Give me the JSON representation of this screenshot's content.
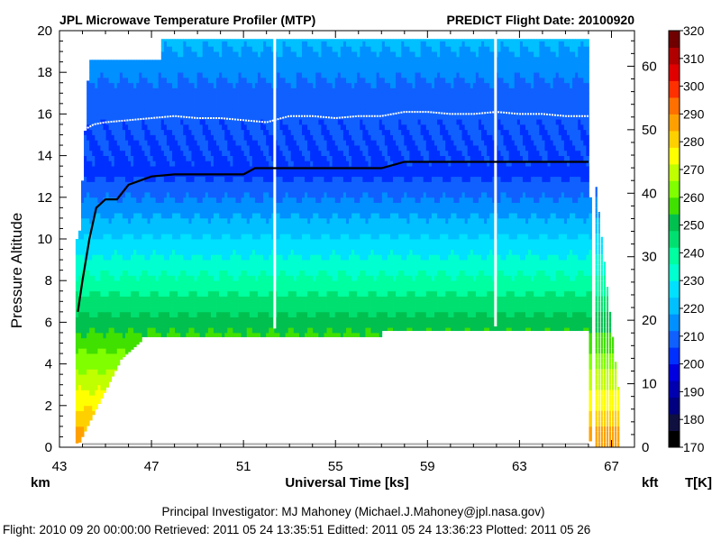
{
  "title_left": "JPL Microwave Temperature Profiler (MTP)",
  "title_right": "PREDICT  Flight Date: 20100920",
  "footer": {
    "line1": "Principal Investigator: MJ Mahoney (Michael.J.Mahoney@jpl.nasa.gov)",
    "line2": "Flight: 2010 09 20 00:00:00   Retrieved: 2011 05 24 13:35:51   Editted: 2011 05 24 13:36:23   Plotted: 2011 05 26"
  },
  "colors": {
    "palette": [
      "#000000",
      "#101040",
      "#000080",
      "#0000b0",
      "#0000e0",
      "#0030ff",
      "#1060ff",
      "#0090ff",
      "#00c0ff",
      "#00e0ff",
      "#00ffd0",
      "#00ffa0",
      "#00e070",
      "#00c050",
      "#40e000",
      "#80ff00",
      "#c0ff00",
      "#ffff00",
      "#ffd000",
      "#ffa000",
      "#ff7000",
      "#ff3000",
      "#e00000",
      "#b00000",
      "#700000"
    ],
    "tropopause": "#000000",
    "aircraft": "#ffffff",
    "surface": "#aaaaaa"
  },
  "chart_data": {
    "type": "heatmap",
    "title": "JPL Microwave Temperature Profiler (MTP)",
    "xlabel": "Universal Time [ks]",
    "ylabel": "Pressure Altitude",
    "y_unit_left": "km",
    "y_unit_right": "kft",
    "colorbar_label": "T[K]",
    "xlim": [
      43,
      68
    ],
    "ylim": [
      0,
      20
    ],
    "ylim_right": [
      0,
      65.6
    ],
    "clim": [
      170,
      320
    ],
    "x_ticks": [
      43,
      47,
      51,
      55,
      59,
      63,
      67
    ],
    "y_ticks": [
      0,
      2,
      4,
      6,
      8,
      10,
      12,
      14,
      16,
      18,
      20
    ],
    "y_ticks_right": [
      0,
      10,
      20,
      30,
      40,
      50,
      60
    ],
    "colorbar_ticks": [
      170,
      180,
      190,
      200,
      210,
      220,
      230,
      240,
      250,
      260,
      270,
      280,
      290,
      300,
      310,
      320
    ],
    "series": [
      {
        "x": [
          43.8,
          44.0,
          44.3,
          44.6,
          45.0,
          45.5,
          46.0,
          46.5,
          47.0,
          48.0,
          49.0,
          50.0,
          51.0,
          51.5,
          52.0,
          53.0,
          54.0,
          55.0,
          56.0,
          57.0,
          58.0,
          59.0,
          60.0,
          61.0,
          62.0,
          63.0,
          64.0,
          65.0,
          66.0
        ],
        "y": [
          6.5,
          8.0,
          10.0,
          11.5,
          11.9,
          11.9,
          12.6,
          12.8,
          13.0,
          13.1,
          13.1,
          13.1,
          13.1,
          13.4,
          13.4,
          13.4,
          13.4,
          13.4,
          13.4,
          13.4,
          13.7,
          13.7,
          13.7,
          13.7,
          13.7,
          13.7,
          13.7,
          13.7,
          13.7
        ]
      },
      {
        "x": [
          44.0,
          44.5,
          45.0,
          46.0,
          47.0,
          48.0,
          49.0,
          50.0,
          51.0,
          52.0,
          53.0,
          54.0,
          55.0,
          56.0,
          57.0,
          58.0,
          59.0,
          60.0,
          61.0,
          62.0,
          63.0,
          64.0,
          65.0,
          66.0
        ],
        "y": [
          15.2,
          15.5,
          15.6,
          15.7,
          15.8,
          15.9,
          15.8,
          15.8,
          15.7,
          15.6,
          15.9,
          15.9,
          15.8,
          15.9,
          15.9,
          16.1,
          16.1,
          16.0,
          16.0,
          16.1,
          16.0,
          16.0,
          15.9,
          15.9
        ]
      }
    ]
  }
}
